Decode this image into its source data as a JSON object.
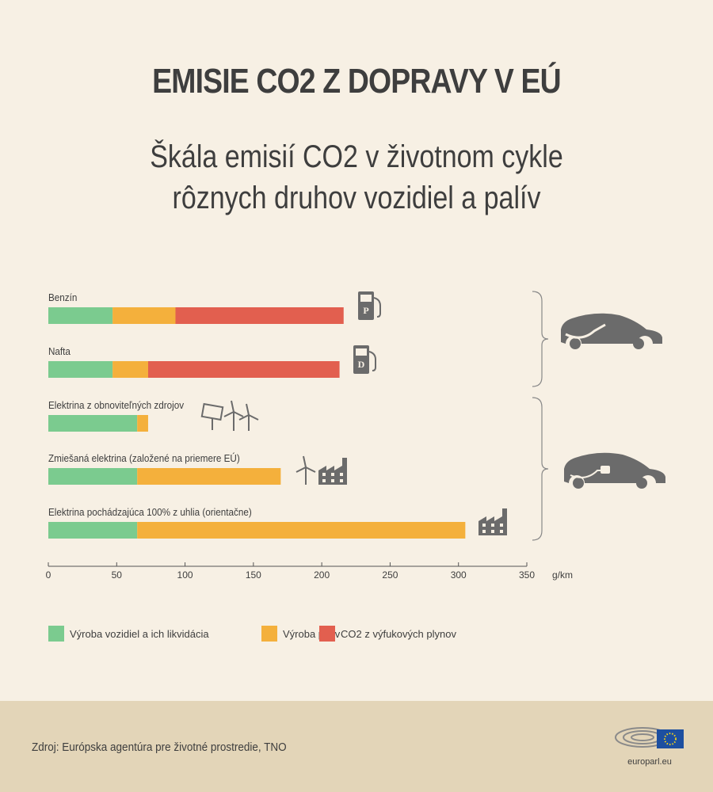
{
  "title": "EMISIE CO2 Z DOPRAVY V EÚ",
  "subtitle_lines": [
    "Škála emisií CO2 v životnom cykle",
    "rôznych druhov vozidiel a palív"
  ],
  "chart_data": {
    "type": "bar",
    "orientation": "horizontal",
    "stacked": true,
    "categories": [
      "Benzín",
      "Nafta",
      "Elektrina z obnoviteľných zdrojov",
      "Zmiešaná elektrina (založené na priemere EÚ)",
      "Elektrina pochádzajúca 100% z uhlia (orientačne)"
    ],
    "series": [
      {
        "name": "Výroba vozidiel a ich likvidácia",
        "color": "#7bcb8f",
        "values": [
          47,
          47,
          65,
          65,
          65
        ]
      },
      {
        "name": "Výroba palív",
        "color": "#f4b03c",
        "values": [
          46,
          26,
          8,
          105,
          240
        ]
      },
      {
        "name": "CO2 z výfukových plynov",
        "color": "#e25f4f",
        "values": [
          123,
          140,
          0,
          0,
          0
        ]
      }
    ],
    "xlim": [
      0,
      350
    ],
    "xticks": [
      0,
      50,
      100,
      150,
      200,
      250,
      300,
      350
    ],
    "xtick_labels": [
      "0",
      "50",
      "100",
      "150",
      "200",
      "250",
      "300",
      "350"
    ],
    "xunit": "g/km",
    "grid": false,
    "legend_position": "bottom-left",
    "icons": [
      "fuel-pump-petrol-icon",
      "fuel-pump-diesel-icon",
      "solar-wind-icon",
      "wind-factory-icon",
      "factory-icon",
      "fuel-car-icon",
      "electric-car-icon"
    ],
    "pump_letters": [
      "P",
      "D"
    ]
  },
  "footer": {
    "source": "Zdroj: Európska agentúra pre životné prostredie, TNO",
    "logo_text": "europarl.eu"
  },
  "colors": {
    "background": "#f7f0e4",
    "footer": "#e3d5b8",
    "icon": "#6b6b6b"
  }
}
